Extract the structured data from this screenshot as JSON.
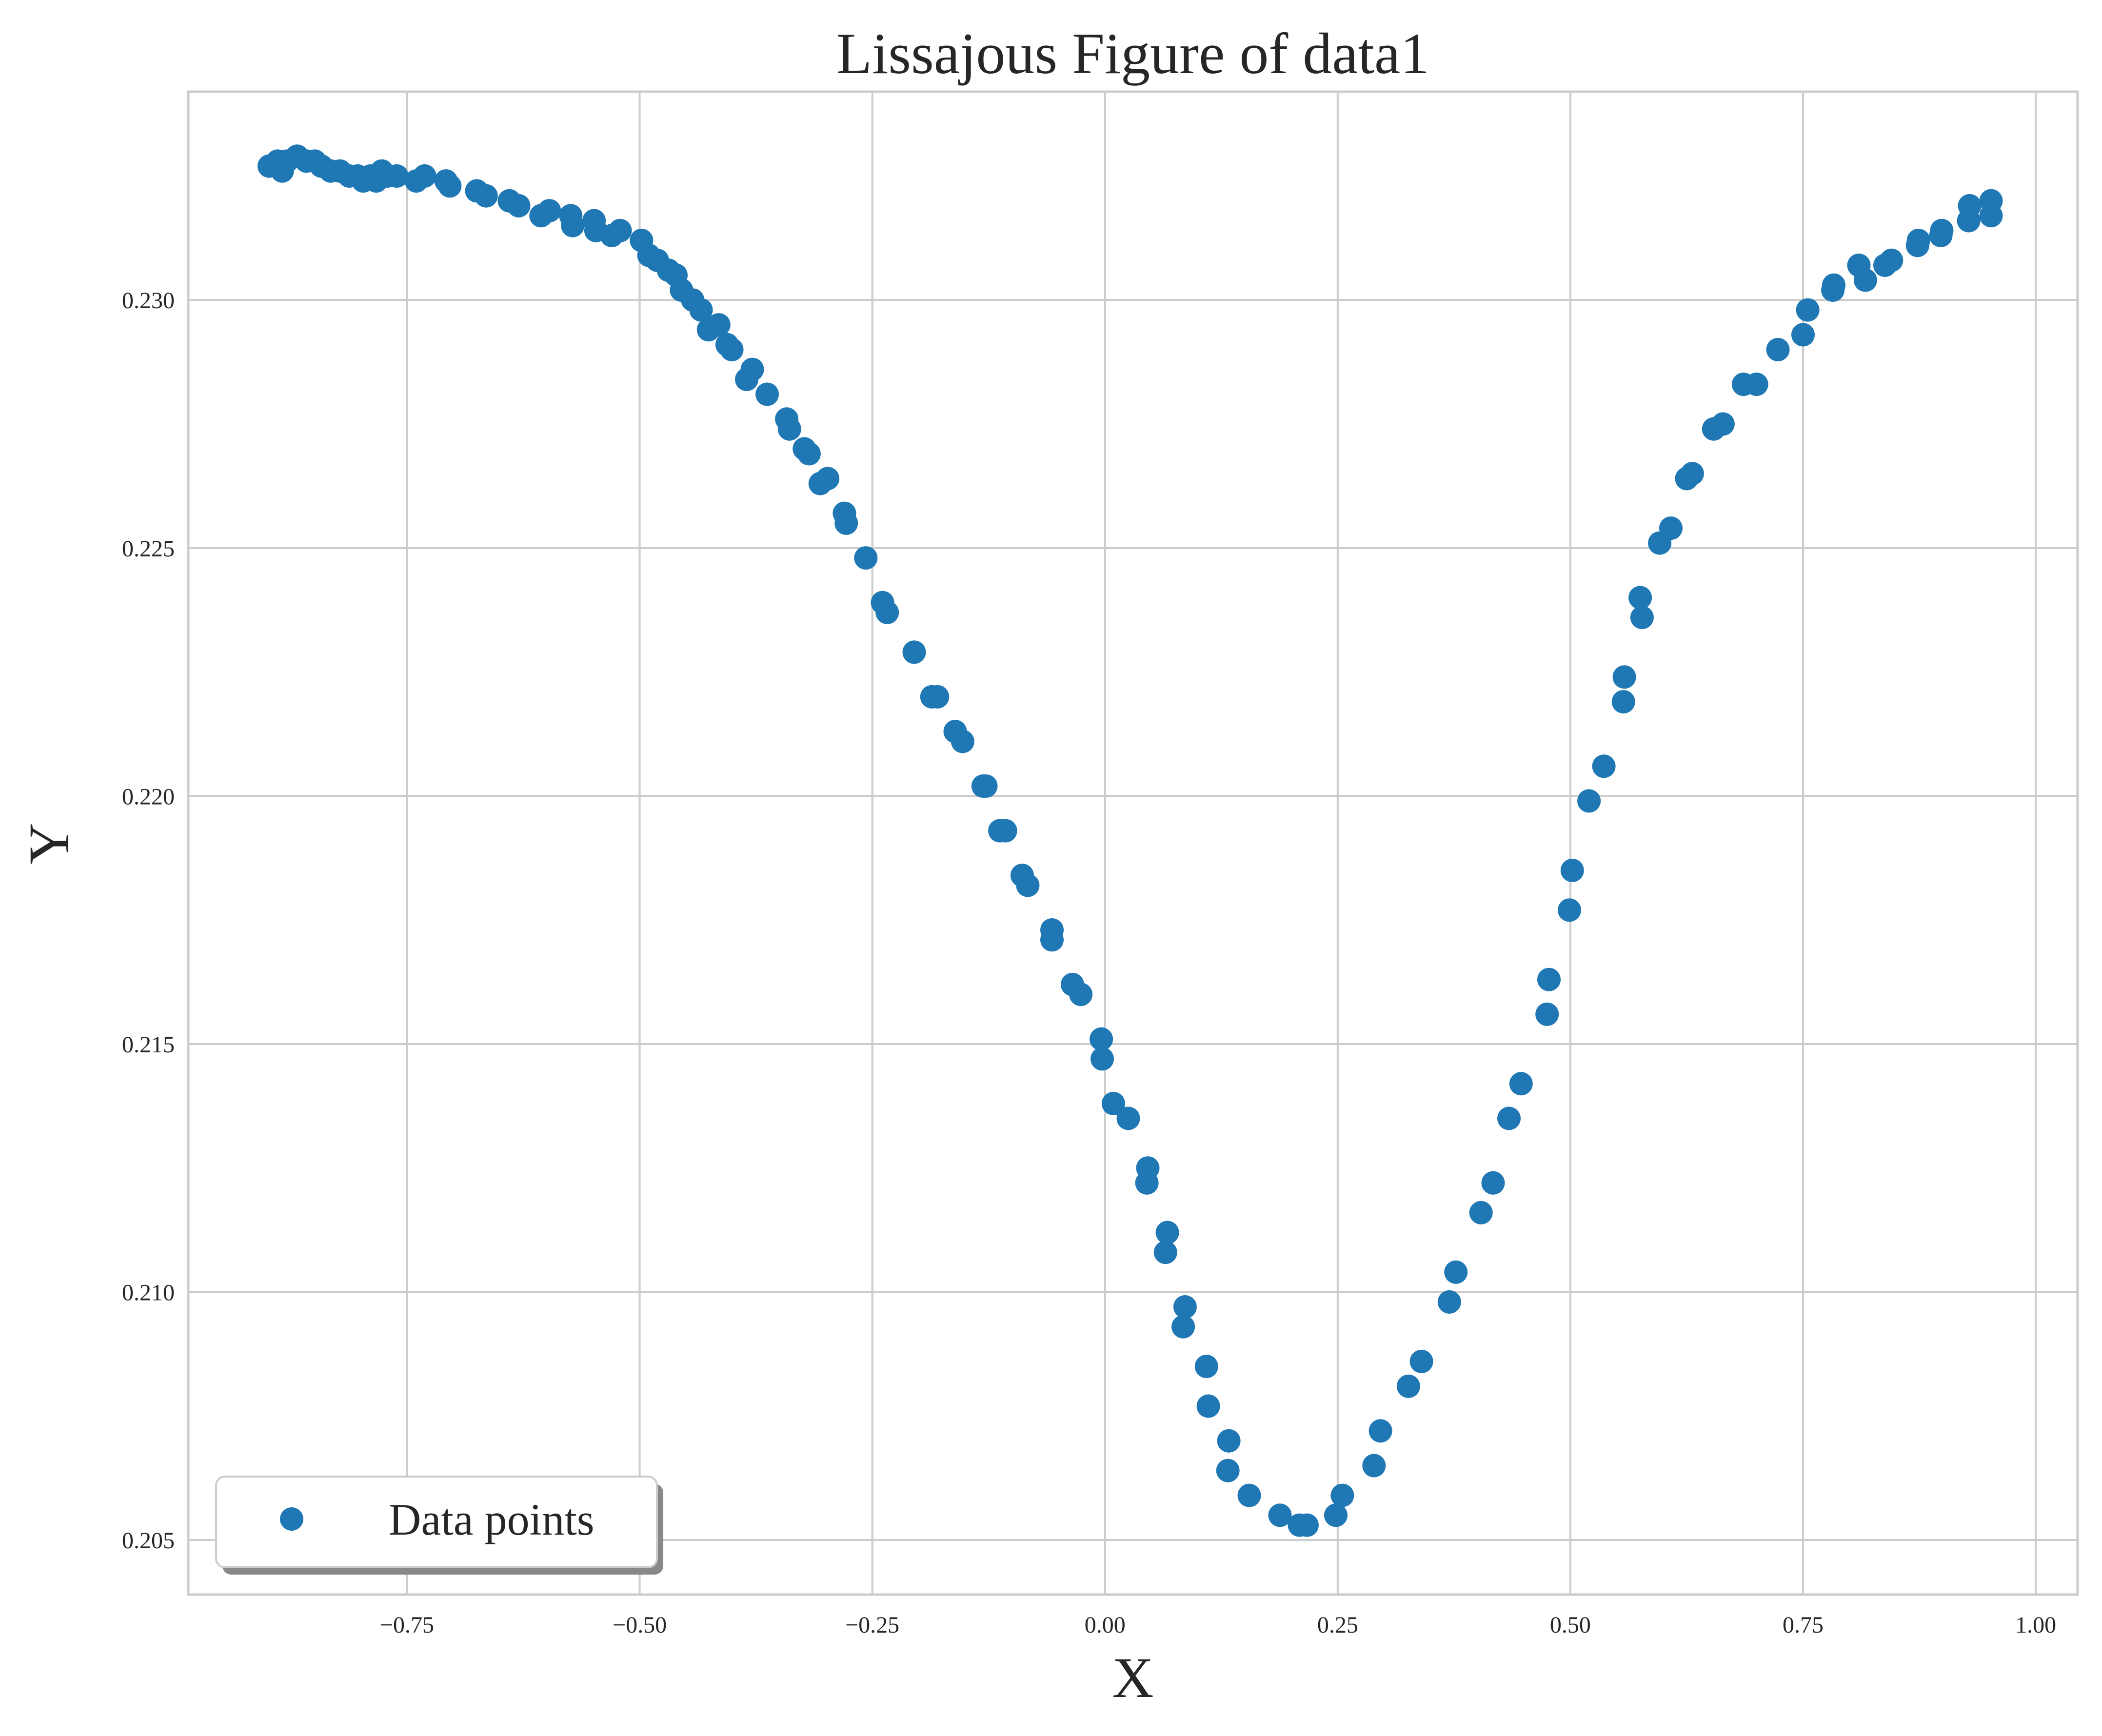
{
  "chart_data": {
    "type": "scatter",
    "title": "Lissajous Figure of data1",
    "xlabel": "X",
    "ylabel": "Y",
    "xlim": [
      -0.985,
      1.045
    ],
    "ylim": [
      0.2039,
      0.2342
    ],
    "xticks": [
      -0.75,
      -0.5,
      -0.25,
      0.0,
      0.25,
      0.5,
      0.75,
      1.0
    ],
    "xtick_labels": [
      "−0.75",
      "−0.50",
      "−0.25",
      "0.00",
      "0.25",
      "0.50",
      "0.75",
      "1.00"
    ],
    "yticks": [
      0.205,
      0.21,
      0.215,
      0.22,
      0.225,
      0.23
    ],
    "ytick_labels": [
      "0.205",
      "0.210",
      "0.215",
      "0.220",
      "0.225",
      "0.230"
    ],
    "grid": true,
    "legend": {
      "position": "lower-left",
      "entries": [
        "Data points"
      ]
    },
    "colors": {
      "points": "#1f77b4",
      "grid": "#cccccc",
      "text": "#262626"
    },
    "series": [
      {
        "name": "Data points",
        "points": [
          [
            -0.898,
            0.2327
          ],
          [
            -0.889,
            0.2328
          ],
          [
            -0.884,
            0.2326
          ],
          [
            -0.879,
            0.2328
          ],
          [
            -0.868,
            0.2329
          ],
          [
            -0.858,
            0.2328
          ],
          [
            -0.849,
            0.2328
          ],
          [
            -0.842,
            0.2327
          ],
          [
            -0.832,
            0.2326
          ],
          [
            -0.822,
            0.2326
          ],
          [
            -0.812,
            0.2325
          ],
          [
            -0.803,
            0.2325
          ],
          [
            -0.797,
            0.2324
          ],
          [
            -0.789,
            0.2325
          ],
          [
            -0.783,
            0.2324
          ],
          [
            -0.777,
            0.2326
          ],
          [
            -0.771,
            0.2325
          ],
          [
            -0.761,
            0.2325
          ],
          [
            -0.74,
            0.2324
          ],
          [
            -0.731,
            0.2325
          ],
          [
            -0.708,
            0.2324
          ],
          [
            -0.704,
            0.2323
          ],
          [
            -0.675,
            0.2322
          ],
          [
            -0.665,
            0.2321
          ],
          [
            -0.64,
            0.232
          ],
          [
            -0.63,
            0.2319
          ],
          [
            -0.606,
            0.2317
          ],
          [
            -0.597,
            0.2318
          ],
          [
            -0.574,
            0.2317
          ],
          [
            -0.572,
            0.2315
          ],
          [
            -0.549,
            0.2316
          ],
          [
            -0.547,
            0.2314
          ],
          [
            -0.53,
            0.2313
          ],
          [
            -0.521,
            0.2314
          ],
          [
            -0.498,
            0.2312
          ],
          [
            -0.49,
            0.2309
          ],
          [
            -0.481,
            0.2308
          ],
          [
            -0.469,
            0.2306
          ],
          [
            -0.461,
            0.2305
          ],
          [
            -0.455,
            0.2302
          ],
          [
            -0.443,
            0.23
          ],
          [
            -0.434,
            0.2298
          ],
          [
            -0.426,
            0.2294
          ],
          [
            -0.415,
            0.2295
          ],
          [
            -0.406,
            0.2291
          ],
          [
            -0.401,
            0.229
          ],
          [
            -0.385,
            0.2284
          ],
          [
            -0.379,
            0.2286
          ],
          [
            -0.363,
            0.2281
          ],
          [
            -0.342,
            0.2276
          ],
          [
            -0.339,
            0.2274
          ],
          [
            -0.323,
            0.227
          ],
          [
            -0.318,
            0.2269
          ],
          [
            -0.306,
            0.2263
          ],
          [
            -0.298,
            0.2264
          ],
          [
            -0.28,
            0.2257
          ],
          [
            -0.278,
            0.2255
          ],
          [
            -0.257,
            0.2248
          ],
          [
            -0.239,
            0.2239
          ],
          [
            -0.234,
            0.2237
          ],
          [
            -0.205,
            0.2229
          ],
          [
            -0.186,
            0.222
          ],
          [
            -0.18,
            0.222
          ],
          [
            -0.161,
            0.2213
          ],
          [
            -0.153,
            0.2211
          ],
          [
            -0.131,
            0.2202
          ],
          [
            -0.128,
            0.2202
          ],
          [
            -0.113,
            0.2193
          ],
          [
            -0.107,
            0.2193
          ],
          [
            -0.089,
            0.2184
          ],
          [
            -0.083,
            0.2182
          ],
          [
            -0.057,
            0.2173
          ],
          [
            -0.057,
            0.2171
          ],
          [
            -0.035,
            0.2162
          ],
          [
            -0.026,
            0.216
          ],
          [
            -0.004,
            0.2151
          ],
          [
            -0.003,
            0.2147
          ],
          [
            0.009,
            0.2138
          ],
          [
            0.025,
            0.2135
          ],
          [
            0.046,
            0.2125
          ],
          [
            0.045,
            0.2122
          ],
          [
            0.067,
            0.2112
          ],
          [
            0.065,
            0.2108
          ],
          [
            0.086,
            0.2097
          ],
          [
            0.084,
            0.2093
          ],
          [
            0.109,
            0.2085
          ],
          [
            0.111,
            0.2077
          ],
          [
            0.133,
            0.207
          ],
          [
            0.132,
            0.2064
          ],
          [
            0.155,
            0.2059
          ],
          [
            0.188,
            0.2055
          ],
          [
            0.209,
            0.2053
          ],
          [
            0.217,
            0.2053
          ],
          [
            0.248,
            0.2055
          ],
          [
            0.255,
            0.2059
          ],
          [
            0.289,
            0.2065
          ],
          [
            0.296,
            0.2072
          ],
          [
            0.326,
            0.2081
          ],
          [
            0.34,
            0.2086
          ],
          [
            0.37,
            0.2098
          ],
          [
            0.377,
            0.2104
          ],
          [
            0.404,
            0.2116
          ],
          [
            0.417,
            0.2122
          ],
          [
            0.434,
            0.2135
          ],
          [
            0.447,
            0.2142
          ],
          [
            0.475,
            0.2156
          ],
          [
            0.477,
            0.2163
          ],
          [
            0.499,
            0.2177
          ],
          [
            0.502,
            0.2185
          ],
          [
            0.52,
            0.2199
          ],
          [
            0.536,
            0.2206
          ],
          [
            0.557,
            0.2219
          ],
          [
            0.558,
            0.2224
          ],
          [
            0.577,
            0.2236
          ],
          [
            0.575,
            0.224
          ],
          [
            0.596,
            0.2251
          ],
          [
            0.608,
            0.2254
          ],
          [
            0.625,
            0.2264
          ],
          [
            0.631,
            0.2265
          ],
          [
            0.654,
            0.2274
          ],
          [
            0.664,
            0.2275
          ],
          [
            0.686,
            0.2283
          ],
          [
            0.7,
            0.2283
          ],
          [
            0.723,
            0.229
          ],
          [
            0.75,
            0.2293
          ],
          [
            0.755,
            0.2298
          ],
          [
            0.782,
            0.2302
          ],
          [
            0.783,
            0.2303
          ],
          [
            0.81,
            0.2307
          ],
          [
            0.817,
            0.2304
          ],
          [
            0.838,
            0.2307
          ],
          [
            0.845,
            0.2308
          ],
          [
            0.873,
            0.2311
          ],
          [
            0.874,
            0.2312
          ],
          [
            0.898,
            0.2313
          ],
          [
            0.899,
            0.2314
          ],
          [
            0.928,
            0.2316
          ],
          [
            0.929,
            0.2319
          ],
          [
            0.952,
            0.2317
          ],
          [
            0.952,
            0.232
          ]
        ]
      }
    ]
  }
}
